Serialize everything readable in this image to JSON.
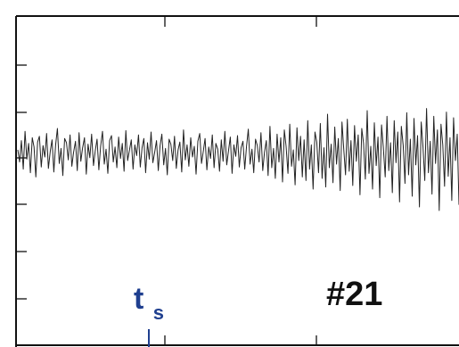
{
  "chart_data": {
    "type": "line",
    "title": "",
    "xlabel": "",
    "ylabel": "",
    "grid": false,
    "legend": "none",
    "annotations": {
      "panel_id": "#21",
      "marker_base": "t",
      "marker_sub": "s"
    },
    "series": [
      {
        "color": "#222222",
        "values": [
          0.05,
          -0.12,
          0.18,
          -0.22,
          0.31,
          -0.08,
          0.14,
          -0.27,
          0.22,
          0.09,
          -0.33,
          0.16,
          0.24,
          -0.19,
          0.11,
          -0.05,
          0.28,
          -0.21,
          0.03,
          0.19,
          -0.26,
          0.12,
          0.35,
          -0.14,
          0.07,
          -0.31,
          0.21,
          0.15,
          -0.09,
          0.26,
          -0.18,
          0.02,
          0.17,
          -0.24,
          0.29,
          -0.11,
          0.08,
          0.22,
          -0.29,
          0.13,
          -0.06,
          0.27,
          -0.17,
          0.04,
          0.2,
          -0.23,
          0.1,
          0.31,
          -0.15,
          0.06,
          -0.28,
          0.18,
          0.25,
          -0.12,
          0.09,
          -0.2,
          0.23,
          -0.07,
          0.14,
          -0.25,
          0.32,
          -0.1,
          0.05,
          0.19,
          -0.22,
          0.12,
          -0.03,
          0.26,
          -0.19,
          0.08,
          0.21,
          -0.27,
          0.15,
          -0.08,
          0.3,
          -0.13,
          0.02,
          0.18,
          -0.24,
          0.11,
          0.27,
          -0.16,
          0.07,
          -0.3,
          0.2,
          0.13,
          -0.1,
          0.24,
          -0.21,
          0.05,
          0.16,
          -0.26,
          0.33,
          -0.09,
          0.12,
          -0.18,
          0.22,
          -0.05,
          0.1,
          -0.29,
          0.17,
          0.28,
          -0.14,
          0.03,
          0.21,
          -0.23,
          0.09,
          -0.07,
          0.26,
          -0.2,
          0.14,
          0.06,
          -0.25,
          0.19,
          -0.11,
          0.31,
          -0.16,
          0.04,
          0.23,
          -0.28,
          0.12,
          -0.04,
          0.25,
          -0.19,
          0.08,
          0.17,
          -0.22,
          0.1,
          0.34,
          -0.15,
          0.06,
          -0.27,
          0.2,
          0.11,
          -0.12,
          0.29,
          -0.24,
          0.02,
          0.18,
          -0.31,
          0.38,
          -0.2,
          0.07,
          -0.35,
          0.27,
          -0.12,
          0.22,
          -0.4,
          0.33,
          0.1,
          -0.28,
          0.41,
          -0.18,
          0.05,
          -0.44,
          0.36,
          -0.1,
          0.24,
          -0.33,
          0.19,
          -0.38,
          0.46,
          -0.22,
          0.12,
          -0.5,
          0.3,
          0.16,
          -0.27,
          0.42,
          -0.35,
          0.08,
          -0.47,
          0.55,
          -0.2,
          0.13,
          -0.41,
          0.37,
          -0.15,
          0.21,
          -0.52,
          0.44,
          0.06,
          -0.3,
          0.48,
          -0.25,
          0.18,
          -0.45,
          0.39,
          -0.11,
          0.26,
          -0.58,
          0.35,
          0.14,
          -0.36,
          0.6,
          -0.28,
          0.1,
          -0.5,
          0.43,
          -0.17,
          0.23,
          -0.62,
          0.4,
          0.08,
          -0.33,
          0.52,
          -0.24,
          0.15,
          -0.55,
          0.46,
          -0.13,
          0.3,
          -0.68,
          0.38,
          0.11,
          -0.42,
          0.57,
          -0.3,
          0.2,
          -0.6,
          0.49,
          -0.16,
          0.25,
          -0.75,
          0.44,
          0.09,
          -0.38,
          0.63,
          -0.27,
          0.17,
          -0.57,
          0.52,
          -0.14,
          0.33,
          -0.8,
          0.41,
          0.12,
          -0.46,
          0.58,
          -0.32,
          0.22,
          -0.66,
          0.5,
          -0.1,
          0.27,
          -0.72
        ]
      }
    ]
  }
}
